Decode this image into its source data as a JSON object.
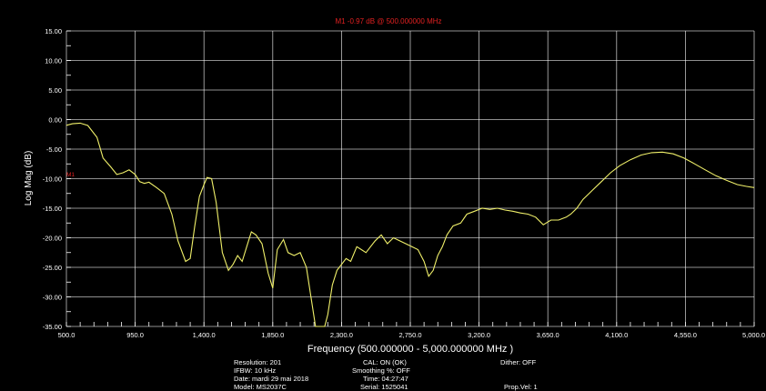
{
  "marker_readout": "M1 -0.97 dB @ 500.000000 MHz",
  "marker_tag": "M1",
  "info": {
    "resolution": "Resolution: 201",
    "ifbw": "IFBW: 10 kHz",
    "date": "Date: mardi 29 mai 2018",
    "model": "Model: MS2037C",
    "cal": "CAL: ON (OK)",
    "smoothing": "Smoothing %:  OFF",
    "time": "Time: 04:27:47",
    "serial": "Serial: 1525041",
    "dither": "Dither:  OFF",
    "prop_vel": "Prop.Vel: 1"
  },
  "colors": {
    "background": "#000000",
    "trace": "#f0f06a",
    "grid": "#ffffff",
    "marker": "#e02020",
    "text": "#ffffff"
  },
  "chart_data": {
    "type": "line",
    "xlabel": "Frequency (500.000000 - 5,000.000000 MHz )",
    "ylabel": "Log Mag (dB)",
    "xlim": [
      500,
      5000
    ],
    "ylim": [
      -35,
      15
    ],
    "grid": true,
    "xticks": [
      500,
      950,
      1400,
      1850,
      2300,
      2750,
      3200,
      3650,
      4100,
      4550,
      5000
    ],
    "xtick_labels": [
      "500.0",
      "950.0",
      "1,400.0",
      "1,850.0",
      "2,300.0",
      "2,750.0",
      "3,200.0",
      "3,650.0",
      "4,100.0",
      "4,550.0",
      "5,000.0"
    ],
    "yticks": [
      15,
      10,
      5,
      0,
      -5,
      -10,
      -15,
      -20,
      -25,
      -30,
      -35
    ],
    "ytick_labels": [
      "15.00",
      "10.00",
      "5.00",
      "0.00",
      "-5.00",
      "-10.00",
      "-15.00",
      "-20.00",
      "-25.00",
      "-30.00",
      "-35.00"
    ],
    "series": [
      {
        "x": [
          500,
          540,
          590,
          640,
          700,
          740,
          790,
          830,
          870,
          910,
          950,
          980,
          1010,
          1040,
          1090,
          1140,
          1190,
          1230,
          1280,
          1310,
          1340,
          1370,
          1400,
          1420,
          1450,
          1480,
          1520,
          1560,
          1590,
          1620,
          1650,
          1680,
          1710,
          1740,
          1780,
          1820,
          1850,
          1880,
          1920,
          1950,
          1990,
          2030,
          2070,
          2100,
          2130,
          2160,
          2190,
          2210,
          2240,
          2270,
          2300,
          2330,
          2360,
          2400,
          2430,
          2460,
          2490,
          2520,
          2560,
          2600,
          2640,
          2680,
          2720,
          2760,
          2800,
          2840,
          2870,
          2900,
          2930,
          2960,
          2990,
          3030,
          3080,
          3120,
          3170,
          3220,
          3270,
          3320,
          3370,
          3420,
          3470,
          3520,
          3570,
          3620,
          3670,
          3720,
          3770,
          3800,
          3840,
          3880,
          3940,
          4000,
          4060,
          4120,
          4190,
          4260,
          4330,
          4400,
          4470,
          4540,
          4610,
          4680,
          4750,
          4820,
          4890,
          4950,
          5000
        ],
        "y": [
          -0.97,
          -0.7,
          -0.6,
          -1.0,
          -3.0,
          -6.5,
          -8.0,
          -9.3,
          -9.0,
          -8.5,
          -9.3,
          -10.5,
          -10.8,
          -10.6,
          -11.5,
          -12.5,
          -16.0,
          -20.5,
          -24.0,
          -23.5,
          -18.0,
          -13.0,
          -11.0,
          -9.8,
          -10.0,
          -14.0,
          -22.5,
          -25.5,
          -24.5,
          -23.0,
          -24.0,
          -21.5,
          -19.0,
          -19.5,
          -21.0,
          -26.0,
          -28.5,
          -22.0,
          -20.3,
          -22.5,
          -23.0,
          -22.5,
          -25.0,
          -30.0,
          -36.0,
          -36.0,
          -36.0,
          -33.0,
          -28.0,
          -25.5,
          -24.5,
          -23.5,
          -24.0,
          -21.5,
          -22.0,
          -22.5,
          -21.5,
          -20.5,
          -19.5,
          -21.0,
          -20.0,
          -20.5,
          -21.0,
          -21.5,
          -22.0,
          -24.0,
          -26.5,
          -25.5,
          -23.0,
          -21.5,
          -19.5,
          -18.0,
          -17.5,
          -16.0,
          -15.5,
          -15.0,
          -15.2,
          -15.0,
          -15.3,
          -15.5,
          -15.8,
          -16.0,
          -16.5,
          -17.8,
          -17.0,
          -17.0,
          -16.5,
          -16.0,
          -15.0,
          -13.5,
          -12.0,
          -10.5,
          -9.0,
          -7.8,
          -6.8,
          -6.0,
          -5.6,
          -5.5,
          -5.8,
          -6.5,
          -7.5,
          -8.5,
          -9.5,
          -10.3,
          -11.0,
          -11.3,
          -11.5
        ]
      }
    ]
  }
}
